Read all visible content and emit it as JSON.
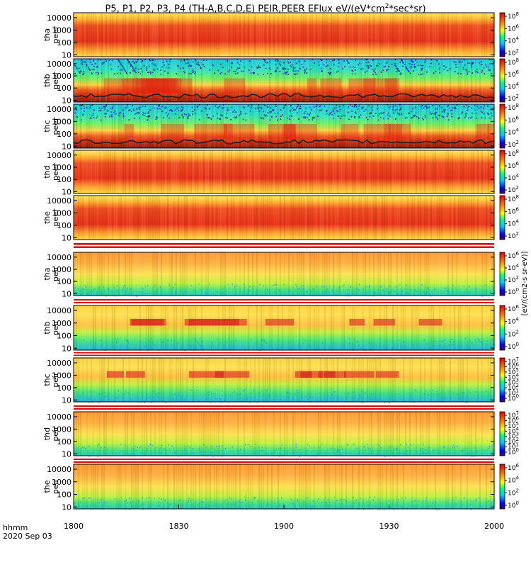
{
  "title": "P5, P1, P2, P3, P4 (TH-A,B,C,D,E) PEIR,PEER EFlux eV/(eV*cm",
  "title_sup": "2",
  "title_tail": "*sec*sr)",
  "xaxis": {
    "ticks": [
      "1800",
      "1830",
      "1900",
      "1930",
      "2000"
    ],
    "label_line1": "hhmm",
    "label_line2": "2020 Sep 03"
  },
  "colorbar_unit_text": "[eV/(cm2-s sr-eV)]",
  "chart_data": [
    {
      "type": "heatmap",
      "probe": "tha",
      "species": "peer",
      "ylabel": [
        "tha",
        "peer"
      ],
      "yticks": [
        "10000",
        "1000",
        "100",
        "10"
      ],
      "ylim_eV": [
        7,
        25000
      ],
      "ylog": true,
      "colorbar_ticks": [
        "10^8",
        "10^6",
        "10^4",
        "10^2"
      ],
      "description_colors": {
        "core": "#e8321a",
        "edge": "#ffe14a"
      }
    },
    {
      "type": "heatmap",
      "probe": "thb",
      "species": "peer",
      "ylabel": [
        "thb",
        "peer"
      ],
      "yticks": [
        "10000",
        "1000",
        "100",
        "10"
      ],
      "ylim_eV": [
        7,
        25000
      ],
      "ylog": true,
      "colorbar_ticks": [
        "10^8",
        "10^6",
        "10^4",
        "10^2"
      ]
    },
    {
      "type": "heatmap",
      "probe": "thc",
      "species": "peer",
      "ylabel": [
        "thc",
        "peer"
      ],
      "yticks": [
        "10000",
        "1000",
        "100",
        "10"
      ],
      "ylim_eV": [
        7,
        25000
      ],
      "ylog": true,
      "colorbar_ticks": [
        "10^8",
        "10^6",
        "10^4",
        "10^2"
      ]
    },
    {
      "type": "heatmap",
      "probe": "thd",
      "species": "peer",
      "ylabel": [
        "thd",
        "peer"
      ],
      "yticks": [
        "10000",
        "1000",
        "100",
        "10"
      ],
      "ylim_eV": [
        7,
        25000
      ],
      "ylog": true,
      "colorbar_ticks": [
        "10^8",
        "10^6",
        "10^4",
        "10^2"
      ]
    },
    {
      "type": "heatmap",
      "probe": "the",
      "species": "peer",
      "ylabel": [
        "the",
        "peer"
      ],
      "yticks": [
        "10000",
        "1000",
        "100",
        "10"
      ],
      "ylim_eV": [
        7,
        25000
      ],
      "ylog": true,
      "colorbar_ticks": [
        "10^8",
        "10^6",
        "10^4",
        "10^2"
      ]
    },
    {
      "type": "heatmap",
      "probe": "tha",
      "species": "peir",
      "ylabel": [
        "tha",
        "peir"
      ],
      "yticks": [
        "10000",
        "1000",
        "100",
        "10"
      ],
      "ylim_eV": [
        7,
        25000
      ],
      "ylog": true,
      "colorbar_ticks": [
        "10^6",
        "10^4",
        "10^2",
        "10^0"
      ]
    },
    {
      "type": "heatmap",
      "probe": "thb",
      "species": "peir",
      "ylabel": [
        "thb",
        "peir"
      ],
      "yticks": [
        "10000",
        "1000",
        "100",
        "10"
      ],
      "ylim_eV": [
        7,
        25000
      ],
      "ylog": true,
      "colorbar_ticks": [
        "10^6",
        "10^4",
        "10^2",
        "10^0"
      ]
    },
    {
      "type": "heatmap",
      "probe": "thc",
      "species": "peir",
      "ylabel": [
        "thc",
        "peir"
      ],
      "yticks": [
        "10000",
        "1000",
        "100",
        "10"
      ],
      "ylim_eV": [
        7,
        25000
      ],
      "ylog": true,
      "colorbar_ticks": [
        "10^7",
        "10^6",
        "10^5",
        "10^4",
        "10^3",
        "10^2",
        "10^1",
        "10^0"
      ]
    },
    {
      "type": "heatmap",
      "probe": "thd",
      "species": "peir",
      "ylabel": [
        "thd",
        "peir"
      ],
      "yticks": [
        "10000",
        "1000",
        "100",
        "10"
      ],
      "ylim_eV": [
        7,
        25000
      ],
      "ylog": true,
      "colorbar_ticks": [
        "10^7",
        "10^6",
        "10^5",
        "10^4",
        "10^3",
        "10^2",
        "10^1",
        "10^0"
      ]
    },
    {
      "type": "heatmap",
      "probe": "the",
      "species": "peir",
      "ylabel": [
        "the",
        "peir"
      ],
      "yticks": [
        "10000",
        "1000",
        "100",
        "10"
      ],
      "ylim_eV": [
        7,
        25000
      ],
      "ylog": true,
      "colorbar_ticks": [
        "10^6",
        "10^4",
        "10^2",
        "10^0"
      ]
    }
  ]
}
